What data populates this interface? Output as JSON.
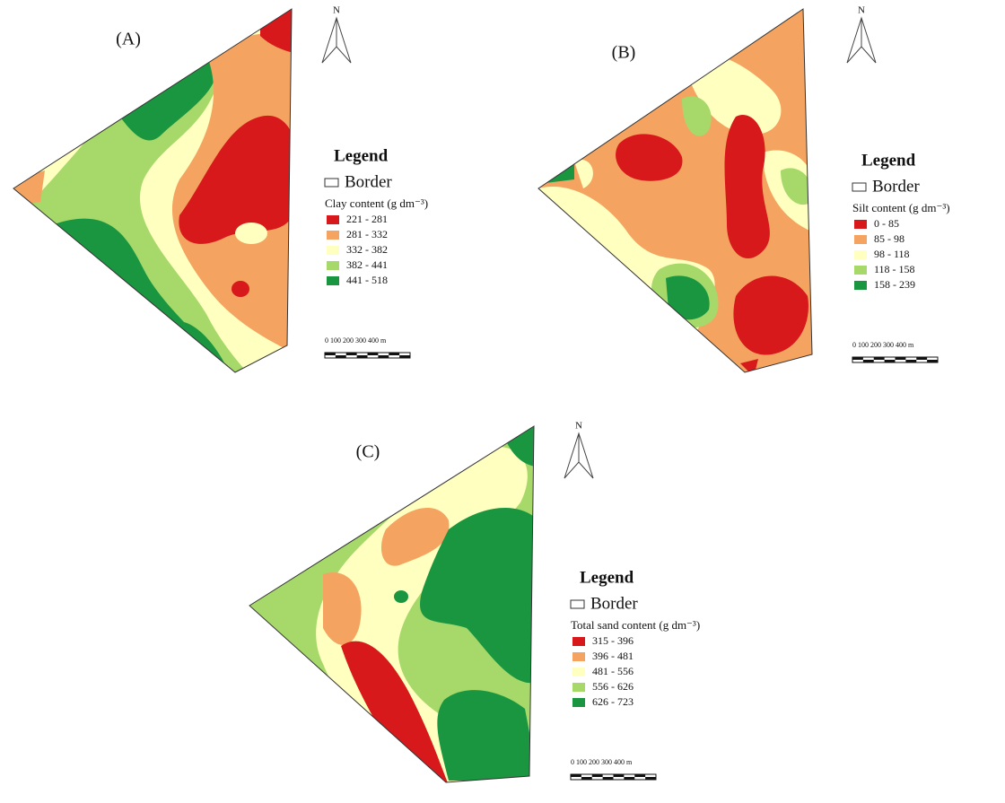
{
  "panels": [
    {
      "label": "(A)",
      "north": "N",
      "legend_title": "Legend",
      "border_label": "Border",
      "variable": "Clay content (g dm⁻³)",
      "classes": [
        {
          "label": "221 - 281",
          "color": "#d7191c"
        },
        {
          "label": "281 - 332",
          "color": "#f4a460"
        },
        {
          "label": "332 - 382",
          "color": "#ffffc0"
        },
        {
          "label": "382 - 441",
          "color": "#a6d96a"
        },
        {
          "label": "441 - 518",
          "color": "#1a9641"
        }
      ],
      "scale": "0   100 200 300 400 m"
    },
    {
      "label": "(B)",
      "north": "N",
      "legend_title": "Legend",
      "border_label": "Border",
      "variable": "Silt content (g dm⁻³)",
      "classes": [
        {
          "label": "0 - 85",
          "color": "#d7191c"
        },
        {
          "label": "85 - 98",
          "color": "#f4a460"
        },
        {
          "label": "98 - 118",
          "color": "#ffffc0"
        },
        {
          "label": "118 - 158",
          "color": "#a6d96a"
        },
        {
          "label": "158 - 239",
          "color": "#1a9641"
        }
      ],
      "scale": "0   100 200 300 400 m"
    },
    {
      "label": "(C)",
      "north": "N",
      "legend_title": "Legend",
      "border_label": "Border",
      "variable": "Total  sand content (g dm⁻³)",
      "classes": [
        {
          "label": "315 - 396",
          "color": "#d7191c"
        },
        {
          "label": "396 - 481",
          "color": "#f4a460"
        },
        {
          "label": "481 - 556",
          "color": "#ffffc0"
        },
        {
          "label": "556 - 626",
          "color": "#a6d96a"
        },
        {
          "label": "626 - 723",
          "color": "#1a9641"
        }
      ],
      "scale": "0   100 200 300 400 m"
    }
  ]
}
